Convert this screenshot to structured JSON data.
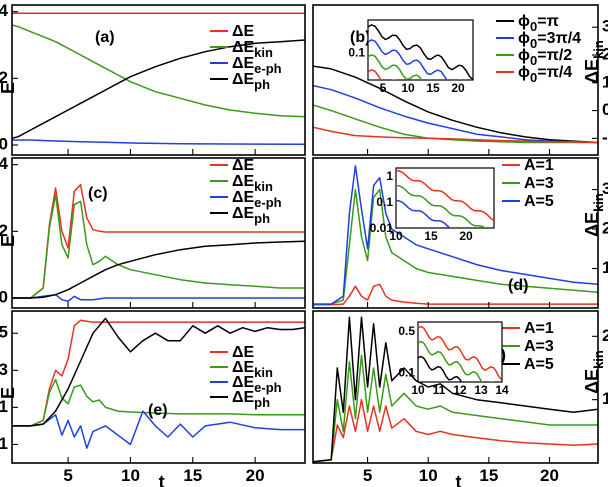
{
  "colors": {
    "red": "#e8321f",
    "green": "#3a9a1a",
    "blue": "#1f3fe0",
    "black": "#000000"
  },
  "chart_data": [
    {
      "type": "line",
      "panel_label": "(a)",
      "ylabel": "E",
      "xlabel": "",
      "xlim": [
        0.5,
        24
      ],
      "ylim": [
        -0.3,
        4.2
      ],
      "yticks": [
        0,
        2,
        4
      ],
      "xticks": [],
      "legend_position": "top-right",
      "series": [
        {
          "name": "ΔE",
          "color": "red",
          "x": [
            0.5,
            24
          ],
          "y": [
            3.95,
            3.95
          ]
        },
        {
          "name": "ΔE_kin",
          "color": "green",
          "x": [
            0.5,
            1,
            2,
            3,
            4,
            5,
            6,
            7,
            8,
            9,
            10,
            12,
            14,
            16,
            18,
            20,
            22,
            24
          ],
          "y": [
            3.6,
            3.55,
            3.4,
            3.25,
            3.1,
            2.9,
            2.7,
            2.5,
            2.3,
            2.1,
            1.9,
            1.6,
            1.4,
            1.2,
            1.05,
            0.95,
            0.88,
            0.85
          ]
        },
        {
          "name": "ΔE_e-ph",
          "color": "blue",
          "x": [
            0.5,
            2,
            4,
            6,
            8,
            10,
            14,
            18,
            24
          ],
          "y": [
            0.15,
            0.15,
            0.12,
            0.1,
            0.08,
            0.06,
            0.04,
            0.03,
            0.02
          ]
        },
        {
          "name": "ΔE_ph",
          "color": "black",
          "x": [
            0.5,
            1,
            2,
            3,
            4,
            5,
            6,
            7,
            8,
            9,
            10,
            12,
            14,
            16,
            18,
            20,
            22,
            24
          ],
          "y": [
            0.2,
            0.25,
            0.45,
            0.65,
            0.85,
            1.05,
            1.25,
            1.45,
            1.65,
            1.85,
            2.05,
            2.35,
            2.6,
            2.8,
            2.95,
            3.05,
            3.1,
            3.15
          ]
        }
      ]
    },
    {
      "type": "line",
      "panel_label": "(b)",
      "ylabel": "ΔE_kin",
      "xlabel": "",
      "xlim": [
        0.5,
        24
      ],
      "ylim": [
        -1.6,
        3.8
      ],
      "yticks": [
        -1,
        0,
        1,
        2,
        3
      ],
      "xticks": [],
      "legend_position": "top-right",
      "series": [
        {
          "name": "ϕ_0=π",
          "color": "black",
          "x": [
            0.5,
            2,
            4,
            6,
            8,
            10,
            12,
            14,
            16,
            18,
            20,
            22,
            24
          ],
          "y": [
            1.6,
            1.5,
            1.2,
            0.8,
            0.35,
            -0.05,
            -0.35,
            -0.6,
            -0.8,
            -0.95,
            -1.05,
            -1.1,
            -1.15
          ]
        },
        {
          "name": "ϕ_0=3π/4",
          "color": "blue",
          "x": [
            0.5,
            2,
            4,
            6,
            8,
            10,
            12,
            14,
            16,
            18,
            20,
            22,
            24
          ],
          "y": [
            0.9,
            0.75,
            0.45,
            0.1,
            -0.2,
            -0.45,
            -0.65,
            -0.85,
            -0.95,
            -1.05,
            -1.1,
            -1.12,
            -1.15
          ]
        },
        {
          "name": "ϕ_0=π/2",
          "color": "green",
          "x": [
            0.5,
            2,
            4,
            6,
            8,
            10,
            12,
            14,
            16,
            18,
            20,
            22,
            24
          ],
          "y": [
            0.2,
            0.0,
            -0.3,
            -0.6,
            -0.85,
            -1.0,
            -1.05,
            -1.1,
            -1.12,
            -1.15,
            -1.15,
            -1.15,
            -1.15
          ]
        },
        {
          "name": "ϕ_0=π/4",
          "color": "red",
          "x": [
            0.5,
            2,
            4,
            6,
            8,
            10,
            12,
            14,
            16,
            18,
            20,
            22,
            24
          ],
          "y": [
            -0.6,
            -0.75,
            -0.9,
            -0.95,
            -0.98,
            -1.0,
            -1.02,
            -1.05,
            -1.08,
            -1.1,
            -1.12,
            -1.13,
            -1.15
          ]
        }
      ],
      "inset": {
        "xlim": [
          2,
          23
        ],
        "ylim_log": [
          0.04,
          0.3
        ],
        "xticks": [
          5,
          10,
          15,
          20
        ],
        "yticks": [
          "0.1"
        ]
      }
    },
    {
      "type": "line",
      "panel_label": "(c)",
      "ylabel": "E",
      "xlabel": "",
      "xlim": [
        0.5,
        24
      ],
      "ylim": [
        -0.3,
        4.2
      ],
      "yticks": [
        0,
        2,
        4
      ],
      "xticks": [],
      "legend_position": "top-right",
      "series": [
        {
          "name": "ΔE",
          "color": "red",
          "x": [
            0.5,
            2,
            3,
            3.5,
            4,
            4.5,
            5,
            5.5,
            6,
            6.5,
            7,
            7.5,
            8,
            24
          ],
          "y": [
            0,
            0,
            0.3,
            2.2,
            3.3,
            2.0,
            1.5,
            3.2,
            3.4,
            2.4,
            2.05,
            2.0,
            1.98,
            1.98
          ]
        },
        {
          "name": "ΔE_kin",
          "color": "green",
          "x": [
            0.5,
            2,
            3,
            3.5,
            4,
            4.5,
            5,
            5.5,
            6,
            6.5,
            7,
            7.5,
            8,
            9,
            10,
            12,
            14,
            16,
            18,
            20,
            22,
            24
          ],
          "y": [
            0,
            0,
            0.3,
            2.1,
            3.1,
            1.6,
            1.2,
            2.8,
            2.9,
            1.6,
            1.0,
            1.1,
            1.25,
            1.0,
            0.85,
            0.7,
            0.55,
            0.45,
            0.4,
            0.35,
            0.3,
            0.3
          ]
        },
        {
          "name": "ΔE_e-ph",
          "color": "blue",
          "x": [
            0.5,
            2,
            3,
            4,
            4.5,
            5,
            5.5,
            6,
            7,
            8,
            9,
            10,
            12,
            24
          ],
          "y": [
            0,
            0,
            0.05,
            0.1,
            -0.05,
            -0.1,
            0.05,
            -0.05,
            -0.05,
            0.0,
            0.0,
            0.0,
            0.0,
            0.0
          ]
        },
        {
          "name": "ΔE_ph",
          "color": "black",
          "x": [
            0.5,
            2,
            3,
            4,
            5,
            6,
            7,
            8,
            9,
            10,
            12,
            14,
            16,
            18,
            20,
            22,
            24
          ],
          "y": [
            0,
            0,
            0.02,
            0.1,
            0.25,
            0.45,
            0.65,
            0.85,
            1.0,
            1.1,
            1.3,
            1.45,
            1.55,
            1.6,
            1.65,
            1.68,
            1.7
          ]
        }
      ]
    },
    {
      "type": "line",
      "panel_label": "(d)",
      "ylabel": "ΔE_kin",
      "xlabel": "",
      "xlim": [
        0.5,
        24
      ],
      "ylim": [
        0,
        3.8
      ],
      "yticks": [
        1,
        2,
        3
      ],
      "xticks": [],
      "legend_position": "top-right",
      "series": [
        {
          "name": "A=1",
          "color": "red",
          "x": [
            0.5,
            2,
            3,
            3.5,
            4,
            4.5,
            5,
            5.5,
            6,
            6.5,
            7,
            8,
            9,
            10,
            12,
            14,
            16,
            18,
            20,
            22,
            24
          ],
          "y": [
            0.08,
            0.08,
            0.1,
            0.3,
            0.55,
            0.3,
            0.2,
            0.55,
            0.6,
            0.3,
            0.2,
            0.15,
            0.12,
            0.1,
            0.1,
            0.1,
            0.1,
            0.1,
            0.1,
            0.1,
            0.1
          ]
        },
        {
          "name": "A=3",
          "color": "green",
          "x": [
            0.5,
            2,
            3,
            3.5,
            4,
            4.5,
            5,
            5.5,
            6,
            6.5,
            7,
            8,
            9,
            10,
            12,
            14,
            16,
            18,
            20,
            22,
            24
          ],
          "y": [
            0.1,
            0.1,
            0.2,
            1.6,
            3.0,
            1.8,
            1.2,
            2.8,
            3.0,
            1.8,
            1.4,
            1.2,
            1.0,
            0.9,
            0.8,
            0.7,
            0.6,
            0.55,
            0.5,
            0.45,
            0.4
          ]
        },
        {
          "name": "A=5",
          "color": "blue",
          "x": [
            0.5,
            2,
            3,
            3.5,
            4,
            4.5,
            5,
            5.5,
            6,
            6.5,
            7,
            8,
            9,
            10,
            12,
            14,
            16,
            18,
            20,
            22,
            24
          ],
          "y": [
            0.1,
            0.1,
            0.3,
            2.4,
            3.6,
            2.5,
            1.5,
            3.1,
            3.3,
            2.4,
            2.0,
            1.8,
            1.6,
            1.5,
            1.3,
            1.1,
            0.95,
            0.85,
            0.75,
            0.65,
            0.6
          ]
        }
      ],
      "inset": {
        "xlim": [
          10,
          24
        ],
        "ylim_log": [
          0.01,
          2
        ],
        "xticks": [
          10,
          15,
          20
        ],
        "yticks": [
          "1",
          "0.1",
          "0.01"
        ]
      }
    },
    {
      "type": "line",
      "panel_label": "(e)",
      "ylabel": "E",
      "xlabel": "t",
      "xlim": [
        0.5,
        24
      ],
      "ylim": [
        -2.0,
        6.2
      ],
      "yticks": [
        -1,
        1,
        3,
        5
      ],
      "xticks": [
        5,
        10,
        15,
        20
      ],
      "legend_position": "right",
      "series": [
        {
          "name": "ΔE",
          "color": "red",
          "x": [
            0.5,
            2,
            3,
            3.5,
            4,
            4.5,
            5,
            5.5,
            6,
            6.5,
            7,
            24
          ],
          "y": [
            0,
            0,
            0.3,
            2.0,
            3.0,
            2.7,
            3.6,
            5.4,
            5.7,
            5.65,
            5.6,
            5.6
          ]
        },
        {
          "name": "ΔE_kin",
          "color": "green",
          "x": [
            0.5,
            2,
            3,
            3.5,
            4,
            4.5,
            5,
            5.5,
            6,
            6.5,
            7,
            7.5,
            8,
            9,
            10,
            12,
            14,
            16,
            18,
            20,
            22,
            24
          ],
          "y": [
            0,
            0,
            0.3,
            1.8,
            2.5,
            1.5,
            1.2,
            2.1,
            2.2,
            1.6,
            1.3,
            1.4,
            1.0,
            0.8,
            0.75,
            0.7,
            0.65,
            0.65,
            0.65,
            0.6,
            0.6,
            0.6
          ]
        },
        {
          "name": "ΔE_e-ph",
          "color": "blue",
          "x": [
            0.5,
            2,
            3,
            4,
            4.5,
            5,
            5.5,
            6,
            6.5,
            7,
            8,
            9,
            10,
            11,
            12,
            13,
            14,
            15,
            16,
            18,
            20,
            22,
            24
          ],
          "y": [
            0,
            0,
            0.1,
            0.6,
            -0.5,
            0.3,
            -0.6,
            0.0,
            -1.2,
            -0.3,
            0.0,
            -0.5,
            -1.0,
            0.8,
            0.0,
            -0.6,
            0.1,
            -0.6,
            0.0,
            0.2,
            -0.1,
            -0.2,
            -0.2
          ]
        },
        {
          "name": "ΔE_ph",
          "color": "black",
          "x": [
            0.5,
            2,
            3,
            4,
            5,
            6,
            7,
            8,
            9,
            10,
            11,
            12,
            13,
            14,
            15,
            16,
            17,
            18,
            19,
            20,
            21,
            22,
            23,
            24
          ],
          "y": [
            0,
            0,
            0.1,
            0.8,
            2.0,
            3.5,
            5.0,
            5.8,
            4.8,
            4.0,
            4.6,
            5.0,
            4.6,
            4.6,
            5.4,
            5.0,
            5.4,
            5.0,
            5.3,
            5.1,
            5.3,
            5.2,
            5.2,
            5.3
          ]
        }
      ]
    },
    {
      "type": "line",
      "panel_label": "(f)",
      "ylabel": "ΔE_kin",
      "xlabel": "t",
      "xlim": [
        0.5,
        24
      ],
      "ylim": [
        0,
        2.4
      ],
      "yticks": [
        1,
        2
      ],
      "xticks": [
        5,
        10,
        15,
        20
      ],
      "legend_position": "top-right",
      "series": [
        {
          "name": "A=1",
          "color": "red",
          "x": [
            0.5,
            2,
            2.5,
            3,
            3.5,
            4,
            4.5,
            5,
            5.5,
            6,
            6.5,
            7,
            8,
            9,
            10,
            11,
            12,
            14,
            16,
            18,
            20,
            22,
            24
          ],
          "y": [
            0.02,
            0.05,
            0.6,
            0.4,
            0.9,
            0.5,
            1.0,
            0.5,
            0.9,
            0.5,
            0.9,
            0.55,
            0.7,
            0.5,
            0.45,
            0.5,
            0.45,
            0.4,
            0.35,
            0.32,
            0.3,
            0.28,
            0.3
          ]
        },
        {
          "name": "A=3",
          "color": "green",
          "x": [
            0.5,
            2,
            2.5,
            3,
            3.5,
            4,
            4.5,
            5,
            5.5,
            6,
            6.5,
            7,
            8,
            9,
            10,
            11,
            12,
            14,
            16,
            18,
            20,
            22,
            24
          ],
          "y": [
            0.02,
            0.05,
            1.0,
            0.5,
            1.6,
            0.7,
            1.7,
            0.8,
            1.5,
            0.8,
            1.4,
            0.9,
            1.1,
            0.9,
            0.85,
            0.9,
            0.8,
            0.75,
            0.7,
            0.65,
            0.6,
            0.6,
            0.6
          ]
        },
        {
          "name": "A=5",
          "color": "black",
          "x": [
            0.5,
            2,
            2.5,
            3,
            3.5,
            4,
            4.5,
            5,
            5.5,
            6,
            6.5,
            7,
            8,
            9,
            10,
            11,
            12,
            14,
            16,
            18,
            20,
            22,
            24
          ],
          "y": [
            0.02,
            0.05,
            1.5,
            0.8,
            2.3,
            1.0,
            2.3,
            1.2,
            2.2,
            1.2,
            1.9,
            1.3,
            1.5,
            1.3,
            1.2,
            1.25,
            1.1,
            1.0,
            0.95,
            0.9,
            0.85,
            0.8,
            0.85
          ]
        }
      ],
      "inset": {
        "xlim": [
          10,
          14
        ],
        "ylim_log": [
          0.07,
          0.7
        ],
        "xticks": [
          10,
          11,
          12,
          13,
          14
        ],
        "yticks": [
          "0.5",
          "0.1"
        ]
      }
    }
  ]
}
